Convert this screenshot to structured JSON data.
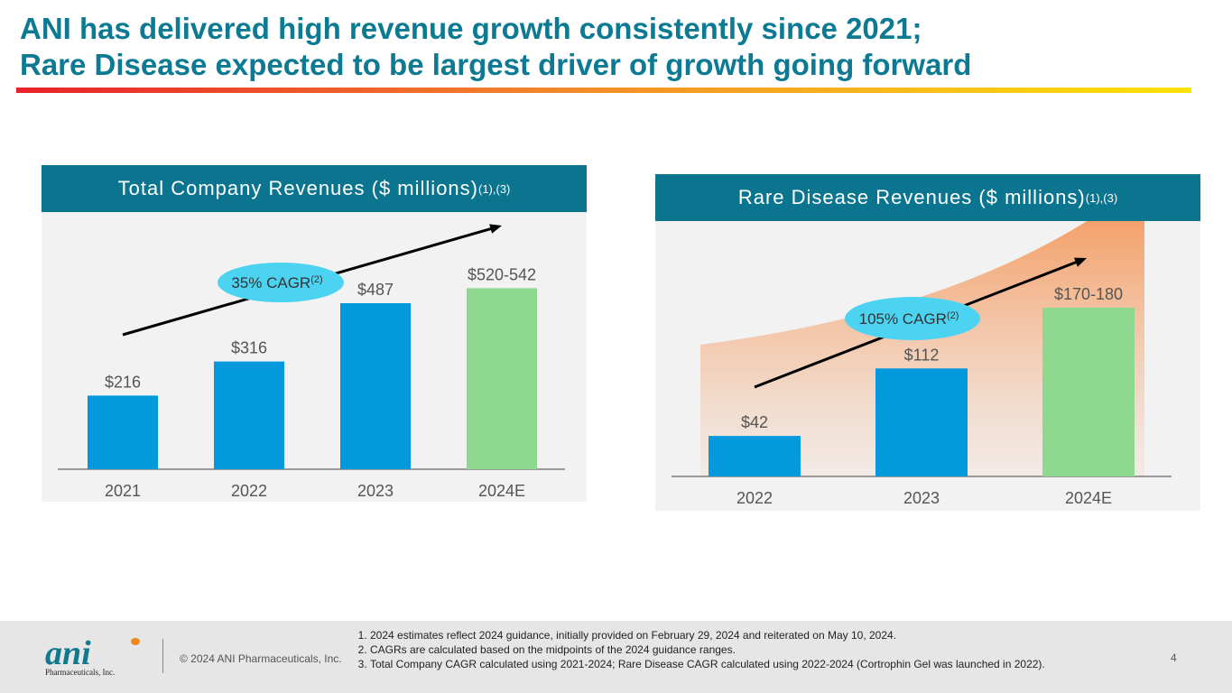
{
  "title_line1": "ANI has delivered high revenue growth consistently since 2021;",
  "title_line2": "Rare Disease expected to be largest driver of growth going forward",
  "chart_data": [
    {
      "type": "bar",
      "title": "Total Company Revenues ($ millions)",
      "title_sup": "(1),(3)",
      "categories": [
        "2021",
        "2022",
        "2023",
        "2024E"
      ],
      "values": [
        216,
        316,
        487,
        531
      ],
      "labels": [
        "$216",
        "$316",
        "$487",
        "$520-542"
      ],
      "range_2024E": [
        520,
        542
      ],
      "colors": [
        "#0399dc",
        "#0399dc",
        "#0399dc",
        "#8ed88f"
      ],
      "annotation": {
        "text": "35% CAGR",
        "sup": "(2)",
        "color": "#4dd3f2"
      },
      "grid": false
    },
    {
      "type": "bar",
      "title": "Rare Disease Revenues ($ millions)",
      "title_sup": "(1),(3)",
      "categories": [
        "2022",
        "2023",
        "2024E"
      ],
      "values": [
        42,
        112,
        175
      ],
      "labels": [
        "$42",
        "$112",
        "$170-180"
      ],
      "range_2024E": [
        170,
        180
      ],
      "colors": [
        "#0399dc",
        "#0399dc",
        "#8ed88f"
      ],
      "annotation": {
        "text": "105% CAGR",
        "sup": "(2)",
        "color": "#4dd3f2"
      },
      "grid": false
    }
  ],
  "footer": {
    "logo_text": "ani",
    "logo_sub": "Pharmaceuticals, Inc.",
    "copyright": "© 2024 ANI Pharmaceuticals, Inc.",
    "notes": [
      "2024 estimates reflect 2024 guidance, initially provided on February 29, 2024 and reiterated on May 10, 2024.",
      "CAGRs are calculated based on the midpoints of the 2024 guidance ranges.",
      "Total Company CAGR calculated using 2021-2024; Rare Disease CAGR calculated using 2022-2024 (Cortrophin Gel was launched in 2022)."
    ],
    "page_number": "4"
  }
}
